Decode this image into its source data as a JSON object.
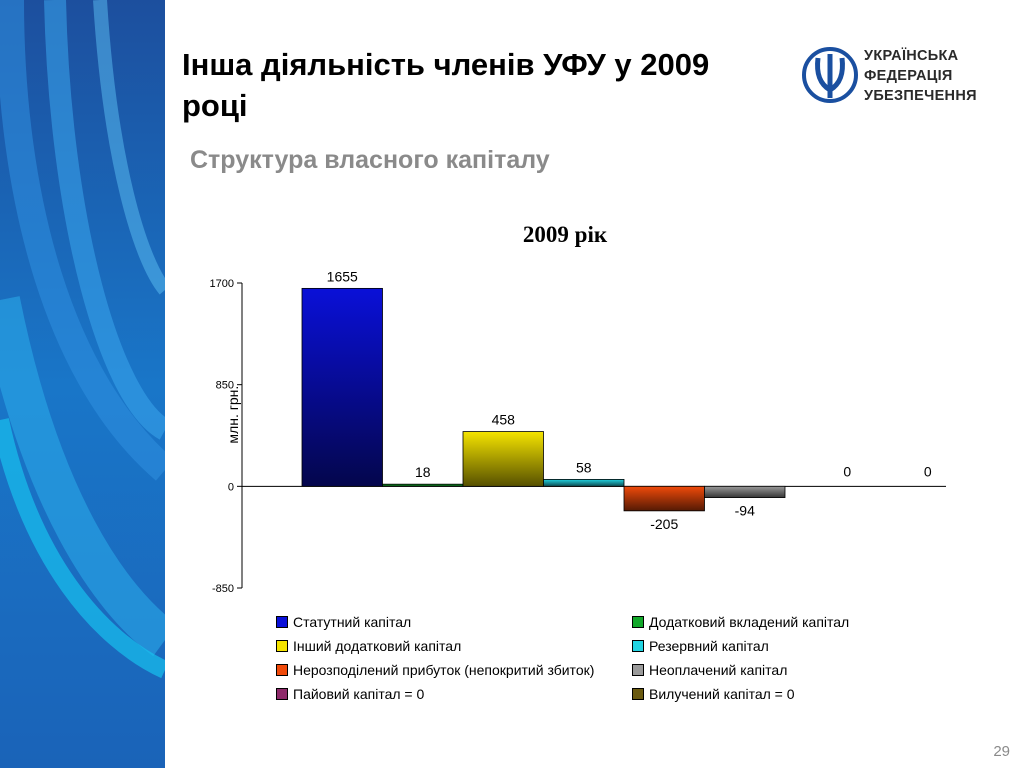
{
  "slide": {
    "title": "Інша діяльність членів УФУ у 2009 році",
    "subtitle": "Структура власного капіталу",
    "page_number": "29"
  },
  "logo": {
    "line1": "УКРАЇНСЬКА",
    "line2": "ФЕДЕРАЦІЯ",
    "line3": "УБЕЗПЕЧЕННЯ",
    "color": "#1a4fa0"
  },
  "chart_data": {
    "type": "bar",
    "title": "2009 рік",
    "ylabel": "млн. грн.",
    "ylim": [
      -850,
      1700
    ],
    "yticks": [
      -850,
      0,
      850,
      1700
    ],
    "grid": false,
    "legend_position": "bottom",
    "series": [
      {
        "name": "Статутний капітал",
        "value": 1655,
        "label": "1655",
        "color": "#0a10d8"
      },
      {
        "name": "Додатковий вкладений капітал",
        "value": 18,
        "label": "18",
        "color": "#12a82a"
      },
      {
        "name": "Інший додатковий капітал",
        "value": 458,
        "label": "458",
        "color": "#f5e400"
      },
      {
        "name": "Резервний капітал",
        "value": 58,
        "label": "58",
        "color": "#22d4e2"
      },
      {
        "name": "Нерозподілений прибуток (непокритий збиток)",
        "value": -205,
        "label": "-205",
        "color": "#f04a0a"
      },
      {
        "name": "Неоплачений капітал",
        "value": -94,
        "label": "-94",
        "color": "#9a9a9a"
      },
      {
        "name": "Пайовий капітал = 0",
        "value": 0,
        "label": "0",
        "color": "#8e2a6a"
      },
      {
        "name": "Вилучений капітал = 0",
        "value": 0,
        "label": "0",
        "color": "#6a5a10"
      }
    ]
  }
}
